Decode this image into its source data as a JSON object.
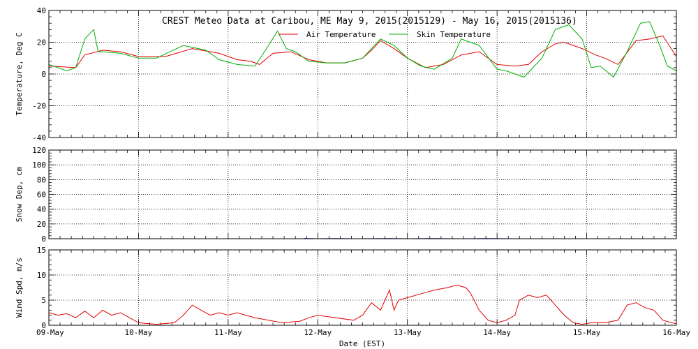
{
  "title": "CREST Meteo Data at Caribou, ME   May  9, 2015(2015129) - May 16, 2015(2015136)",
  "xlabel": "Date (EST)",
  "x_ticks": [
    "09-May",
    "10-May",
    "11-May",
    "12-May",
    "13-May",
    "14-May",
    "15-May",
    "16-May"
  ],
  "chart_data": [
    {
      "type": "line",
      "ylabel": "Temperature, Deg C",
      "ylim": [
        -40,
        40
      ],
      "yticks": [
        -40,
        -20,
        0,
        20,
        40
      ],
      "xlim": [
        0,
        7
      ],
      "grid": true,
      "legend": "top-center",
      "series": [
        {
          "name": "Air Temperature",
          "color": "#e00000",
          "x": [
            0,
            0.3,
            0.4,
            0.6,
            0.8,
            1.0,
            1.3,
            1.6,
            1.9,
            2.1,
            2.25,
            2.35,
            2.5,
            2.7,
            2.9,
            3.1,
            3.3,
            3.5,
            3.6,
            3.7,
            3.85,
            4.0,
            4.2,
            4.4,
            4.6,
            4.8,
            5.0,
            5.2,
            5.35,
            5.5,
            5.65,
            5.75,
            5.95,
            6.1,
            6.2,
            6.35,
            6.55,
            6.7,
            6.85,
            7.0
          ],
          "y": [
            5,
            4,
            12,
            15,
            14,
            11,
            11,
            16,
            13,
            9,
            8,
            6,
            13,
            14,
            9,
            7,
            7,
            10,
            15,
            21,
            16,
            10,
            4,
            6,
            12,
            14,
            6,
            5,
            6,
            14,
            19,
            20,
            16,
            12,
            10,
            6,
            21,
            22,
            24,
            11
          ]
        },
        {
          "name": "Skin Temperature",
          "color": "#00b000",
          "x": [
            0,
            0.2,
            0.3,
            0.4,
            0.5,
            0.55,
            0.6,
            0.8,
            1.0,
            1.2,
            1.5,
            1.75,
            1.9,
            2.1,
            2.3,
            2.45,
            2.55,
            2.65,
            2.75,
            2.9,
            3.1,
            3.3,
            3.5,
            3.7,
            3.85,
            4.0,
            4.15,
            4.3,
            4.5,
            4.6,
            4.8,
            5.0,
            5.1,
            5.3,
            5.5,
            5.65,
            5.8,
            5.95,
            6.05,
            6.15,
            6.3,
            6.45,
            6.6,
            6.7,
            6.8,
            6.9,
            7.0
          ],
          "y": [
            6,
            2,
            4,
            22,
            28,
            14,
            14,
            13,
            10,
            10,
            18,
            15,
            9,
            6,
            5,
            18,
            27,
            16,
            14,
            8,
            7,
            7,
            10,
            22,
            18,
            10,
            5,
            3,
            10,
            22,
            18,
            3,
            2,
            -2,
            10,
            28,
            31,
            22,
            4,
            5,
            -2,
            14,
            32,
            33,
            20,
            5,
            2
          ]
        }
      ]
    },
    {
      "type": "line",
      "ylabel": "Snow Dep, cm",
      "ylim": [
        0,
        120
      ],
      "yticks": [
        0,
        20,
        40,
        60,
        80,
        100,
        120
      ],
      "xlim": [
        0,
        7
      ],
      "grid": true,
      "series": [
        {
          "color": "#0000e0",
          "x": [
            2.85,
            2.9,
            3.0,
            3.2,
            3.5,
            3.8,
            4.0,
            4.3,
            4.6,
            4.9,
            5.2
          ],
          "y": [
            0.4,
            0.3,
            0,
            0.2,
            0,
            0.3,
            0,
            0.2,
            0,
            0.3,
            0
          ]
        }
      ]
    },
    {
      "type": "line",
      "ylabel": "Wind Spd, m/s",
      "ylim": [
        0,
        15
      ],
      "yticks": [
        0,
        5,
        10,
        15
      ],
      "xlim": [
        0,
        7
      ],
      "grid": true,
      "series": [
        {
          "color": "#e00000",
          "x": [
            0,
            0.1,
            0.2,
            0.3,
            0.4,
            0.5,
            0.6,
            0.7,
            0.8,
            0.9,
            1.0,
            1.2,
            1.4,
            1.5,
            1.6,
            1.7,
            1.8,
            1.9,
            2.0,
            2.1,
            2.2,
            2.3,
            2.45,
            2.6,
            2.8,
            2.9,
            3.0,
            3.2,
            3.4,
            3.5,
            3.6,
            3.7,
            3.8,
            3.85,
            3.9,
            4.0,
            4.1,
            4.2,
            4.3,
            4.45,
            4.55,
            4.65,
            4.7,
            4.8,
            4.9,
            5.0,
            5.1,
            5.2,
            5.25,
            5.35,
            5.45,
            5.55,
            5.65,
            5.75,
            5.85,
            5.95,
            6.05,
            6.2,
            6.35,
            6.45,
            6.55,
            6.65,
            6.75,
            6.85,
            6.95,
            7.0
          ],
          "y": [
            2.5,
            2,
            2.3,
            1.5,
            2.8,
            1.5,
            3,
            2,
            2.5,
            1.5,
            0.5,
            0.2,
            0.5,
            2,
            4,
            3,
            2,
            2.5,
            2,
            2.5,
            2,
            1.5,
            1,
            0.5,
            0.8,
            1.5,
            2,
            1.5,
            1,
            2,
            4.5,
            3,
            7,
            3,
            5,
            5.5,
            6,
            6.5,
            7,
            7.5,
            8,
            7.5,
            6.5,
            3,
            1,
            0.5,
            1,
            2,
            5,
            6,
            5.5,
            6,
            4,
            2,
            0.5,
            0.2,
            0.5,
            0.5,
            1,
            4,
            4.5,
            3.5,
            3,
            1,
            0.5,
            0.3
          ]
        }
      ]
    }
  ]
}
